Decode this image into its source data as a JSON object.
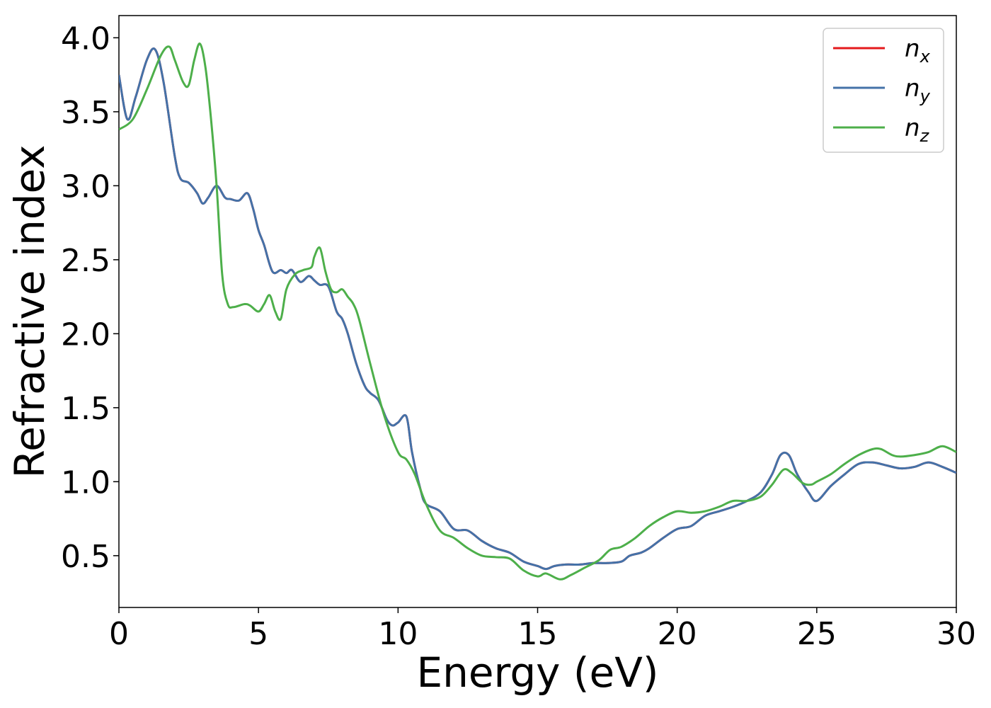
{
  "chart_data": {
    "type": "line",
    "title": "",
    "xlabel": "Energy (eV)",
    "ylabel": "Refractive index",
    "xlim": [
      0,
      30
    ],
    "ylim": [
      0.15,
      4.15
    ],
    "xticks": [
      0,
      5,
      10,
      15,
      20,
      25,
      30
    ],
    "xtick_labels": [
      "0",
      "5",
      "10",
      "15",
      "20",
      "25",
      "30"
    ],
    "yticks": [
      0.5,
      1.0,
      1.5,
      2.0,
      2.5,
      3.0,
      3.5,
      4.0
    ],
    "ytick_labels": [
      "0.5",
      "1.0",
      "1.5",
      "2.0",
      "2.5",
      "3.0",
      "3.5",
      "4.0"
    ],
    "grid": false,
    "legend_position": "top-right",
    "series": [
      {
        "name": "n_x",
        "label_base": "n",
        "label_sub": "x",
        "color": "#e41a1c",
        "x": [
          0,
          0.3,
          0.6,
          1.0,
          1.3,
          1.6,
          2.0,
          2.2,
          2.5,
          2.8,
          3.0,
          3.2,
          3.5,
          3.8,
          4.0,
          4.3,
          4.6,
          4.8,
          5.0,
          5.2,
          5.5,
          5.8,
          6.0,
          6.2,
          6.5,
          6.8,
          7.0,
          7.2,
          7.5,
          7.8,
          8.0,
          8.2,
          8.5,
          8.8,
          9.0,
          9.3,
          9.6,
          9.8,
          10.0,
          10.3,
          10.5,
          10.8,
          11.0,
          11.5,
          12.0,
          12.5,
          13.0,
          13.5,
          14.0,
          14.5,
          15.0,
          15.3,
          15.6,
          16.0,
          16.5,
          17.0,
          17.5,
          18.0,
          18.3,
          18.7,
          19.0,
          19.5,
          20.0,
          20.5,
          21.0,
          21.5,
          22.0,
          22.5,
          23.0,
          23.4,
          23.7,
          24.0,
          24.3,
          24.7,
          25.0,
          25.5,
          26.0,
          26.5,
          27.0,
          27.5,
          28.0,
          28.5,
          29.0,
          29.5,
          30.0
        ],
        "y": [
          3.75,
          3.45,
          3.6,
          3.85,
          3.92,
          3.7,
          3.2,
          3.05,
          3.02,
          2.95,
          2.88,
          2.92,
          3.0,
          2.92,
          2.91,
          2.9,
          2.95,
          2.85,
          2.7,
          2.6,
          2.42,
          2.43,
          2.41,
          2.43,
          2.35,
          2.39,
          2.36,
          2.33,
          2.32,
          2.15,
          2.1,
          2.0,
          1.8,
          1.65,
          1.6,
          1.55,
          1.42,
          1.38,
          1.4,
          1.44,
          1.2,
          0.95,
          0.85,
          0.8,
          0.68,
          0.67,
          0.6,
          0.55,
          0.52,
          0.46,
          0.43,
          0.41,
          0.43,
          0.44,
          0.44,
          0.45,
          0.45,
          0.46,
          0.5,
          0.52,
          0.55,
          0.62,
          0.68,
          0.7,
          0.77,
          0.8,
          0.83,
          0.87,
          0.93,
          1.05,
          1.18,
          1.18,
          1.05,
          0.93,
          0.87,
          0.97,
          1.05,
          1.12,
          1.13,
          1.11,
          1.09,
          1.1,
          1.13,
          1.1,
          1.06
        ]
      },
      {
        "name": "n_y",
        "label_base": "n",
        "label_sub": "y",
        "color": "#4472a8",
        "x": [
          0,
          0.3,
          0.6,
          1.0,
          1.3,
          1.6,
          2.0,
          2.2,
          2.5,
          2.8,
          3.0,
          3.2,
          3.5,
          3.8,
          4.0,
          4.3,
          4.6,
          4.8,
          5.0,
          5.2,
          5.5,
          5.8,
          6.0,
          6.2,
          6.5,
          6.8,
          7.0,
          7.2,
          7.5,
          7.8,
          8.0,
          8.2,
          8.5,
          8.8,
          9.0,
          9.3,
          9.6,
          9.8,
          10.0,
          10.3,
          10.5,
          10.8,
          11.0,
          11.5,
          12.0,
          12.5,
          13.0,
          13.5,
          14.0,
          14.5,
          15.0,
          15.3,
          15.6,
          16.0,
          16.5,
          17.0,
          17.5,
          18.0,
          18.3,
          18.7,
          19.0,
          19.5,
          20.0,
          20.5,
          21.0,
          21.5,
          22.0,
          22.5,
          23.0,
          23.4,
          23.7,
          24.0,
          24.3,
          24.7,
          25.0,
          25.5,
          26.0,
          26.5,
          27.0,
          27.5,
          28.0,
          28.5,
          29.0,
          29.5,
          30.0
        ],
        "y": [
          3.75,
          3.45,
          3.6,
          3.85,
          3.92,
          3.7,
          3.2,
          3.05,
          3.02,
          2.95,
          2.88,
          2.92,
          3.0,
          2.92,
          2.91,
          2.9,
          2.95,
          2.85,
          2.7,
          2.6,
          2.42,
          2.43,
          2.41,
          2.43,
          2.35,
          2.39,
          2.36,
          2.33,
          2.32,
          2.15,
          2.1,
          2.0,
          1.8,
          1.65,
          1.6,
          1.55,
          1.42,
          1.38,
          1.4,
          1.44,
          1.2,
          0.95,
          0.85,
          0.8,
          0.68,
          0.67,
          0.6,
          0.55,
          0.52,
          0.46,
          0.43,
          0.41,
          0.43,
          0.44,
          0.44,
          0.45,
          0.45,
          0.46,
          0.5,
          0.52,
          0.55,
          0.62,
          0.68,
          0.7,
          0.77,
          0.8,
          0.83,
          0.87,
          0.93,
          1.05,
          1.18,
          1.18,
          1.05,
          0.93,
          0.87,
          0.97,
          1.05,
          1.12,
          1.13,
          1.11,
          1.09,
          1.1,
          1.13,
          1.1,
          1.06
        ]
      },
      {
        "name": "n_z",
        "label_base": "n",
        "label_sub": "z",
        "color": "#4daf4a",
        "x": [
          0,
          0.5,
          1.0,
          1.5,
          1.8,
          2.0,
          2.3,
          2.5,
          2.7,
          2.9,
          3.1,
          3.3,
          3.5,
          3.7,
          3.9,
          4.1,
          4.5,
          4.7,
          5.0,
          5.2,
          5.4,
          5.6,
          5.8,
          6.0,
          6.3,
          6.6,
          6.9,
          7.0,
          7.2,
          7.4,
          7.6,
          7.8,
          8.0,
          8.2,
          8.4,
          8.6,
          9.0,
          9.5,
          10.0,
          10.3,
          10.6,
          11.0,
          11.5,
          12.0,
          12.5,
          13.0,
          13.5,
          14.0,
          14.5,
          15.0,
          15.3,
          15.8,
          16.2,
          16.7,
          17.2,
          17.6,
          18.0,
          18.5,
          19.0,
          19.5,
          20.0,
          20.5,
          21.0,
          21.5,
          22.0,
          22.5,
          23.0,
          23.4,
          23.8,
          24.1,
          24.5,
          24.8,
          25.0,
          25.5,
          26.0,
          26.5,
          27.0,
          27.3,
          27.7,
          28.0,
          28.5,
          29.0,
          29.5,
          30.0
        ],
        "y": [
          3.38,
          3.45,
          3.65,
          3.88,
          3.94,
          3.85,
          3.7,
          3.68,
          3.85,
          3.96,
          3.8,
          3.45,
          3.0,
          2.4,
          2.2,
          2.18,
          2.2,
          2.19,
          2.15,
          2.2,
          2.26,
          2.15,
          2.1,
          2.3,
          2.4,
          2.43,
          2.45,
          2.52,
          2.58,
          2.42,
          2.3,
          2.28,
          2.3,
          2.25,
          2.2,
          2.1,
          1.8,
          1.45,
          1.2,
          1.15,
          1.05,
          0.85,
          0.67,
          0.62,
          0.55,
          0.5,
          0.49,
          0.48,
          0.4,
          0.36,
          0.38,
          0.34,
          0.37,
          0.42,
          0.47,
          0.54,
          0.56,
          0.62,
          0.7,
          0.76,
          0.8,
          0.79,
          0.8,
          0.83,
          0.87,
          0.87,
          0.9,
          0.98,
          1.08,
          1.06,
          0.99,
          0.98,
          1.0,
          1.05,
          1.12,
          1.18,
          1.22,
          1.22,
          1.18,
          1.17,
          1.18,
          1.2,
          1.24,
          1.2
        ]
      }
    ]
  }
}
